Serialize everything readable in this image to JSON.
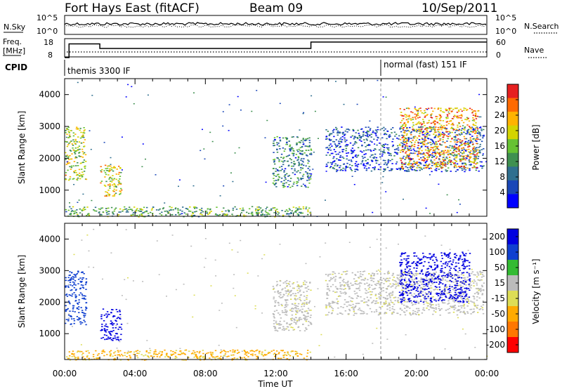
{
  "header": {
    "station": "Fort Hays East (fitACF)",
    "beam": "Beam 09",
    "date": "10/Sep/2011"
  },
  "noise_panel": {
    "left_label": "N.Sky",
    "right_label": "N.Search",
    "left_ticks": [
      "10^5",
      "10^0"
    ],
    "right_ticks": [
      "10^5",
      "10^0"
    ]
  },
  "freq_panel": {
    "left_label_top": "Freq.",
    "left_label_unit": "[MHz]",
    "right_label": "Nave",
    "left_ticks": [
      "18",
      "8"
    ],
    "right_ticks": [
      "60",
      "0"
    ],
    "freq_steps": [
      {
        "t_start": 0.0,
        "t_end": 0.25,
        "mhz": 8
      },
      {
        "t_start": 0.25,
        "t_end": 2.0,
        "mhz": 15.5
      },
      {
        "t_start": 2.0,
        "t_end": 14.0,
        "mhz": 13
      },
      {
        "t_start": 14.0,
        "t_end": 24.0,
        "mhz": 16.5
      }
    ]
  },
  "cpid_panel": {
    "label": "CPID",
    "programs": [
      {
        "name": "themis 3300 IF",
        "t_start": 0.0
      },
      {
        "name": "normal (fast) 151 IF",
        "t_start": 18.0
      }
    ]
  },
  "colors": {
    "power": [
      "#0000ff",
      "#1a47b8",
      "#2f6f8f",
      "#3f9050",
      "#67c233",
      "#d4d400",
      "#ffb300",
      "#ff6a00",
      "#e62020"
    ],
    "velocity": [
      "#0000e0",
      "#1040d0",
      "#33bb33",
      "#bbbbbb",
      "#dddd55",
      "#ffaa00",
      "#ff7700",
      "#ff0000"
    ],
    "ground": "#bbbbbb"
  },
  "chart_data": [
    {
      "type": "heatmap",
      "name": "power",
      "ylabel": "Slant Range [km]",
      "yticks": [
        1000,
        2000,
        3000,
        4000
      ],
      "ylim": [
        180,
        4500
      ],
      "xlim": [
        0,
        24
      ],
      "colorbar_label": "Power [dB]",
      "colorbar_ticks": [
        "28",
        "24",
        "20",
        "16",
        "12",
        "8",
        "4"
      ],
      "colorbar_range": [
        0,
        32
      ],
      "echo_regions": [
        {
          "t_start": 0.0,
          "t_end": 1.2,
          "r_low": 1300,
          "r_high": 3000,
          "dB": 18
        },
        {
          "t_start": 2.0,
          "t_end": 3.2,
          "r_low": 800,
          "r_high": 1800,
          "dB": 20
        },
        {
          "t_start": 11.8,
          "t_end": 14.0,
          "r_low": 1100,
          "r_high": 2700,
          "dB": 10
        },
        {
          "t_start": 14.8,
          "t_end": 23.8,
          "r_low": 1600,
          "r_high": 3000,
          "dB": 6
        },
        {
          "t_start": 19.0,
          "t_end": 23.5,
          "r_low": 1700,
          "r_high": 3600,
          "dB": 24
        },
        {
          "t_start": 0.0,
          "t_end": 14.0,
          "r_low": 180,
          "r_high": 500,
          "dB": 14
        }
      ]
    },
    {
      "type": "heatmap",
      "name": "velocity",
      "ylabel": "Slant Range [km]",
      "xlabel": "Time UT",
      "xticks": [
        "00:00",
        "04:00",
        "08:00",
        "12:00",
        "16:00",
        "20:00",
        "00:00"
      ],
      "yticks": [
        1000,
        2000,
        3000,
        4000
      ],
      "ylim": [
        180,
        4500
      ],
      "xlim": [
        0,
        24
      ],
      "colorbar_label": "Velocity [m s⁻¹]",
      "colorbar_ticks": [
        "200",
        "100",
        "50",
        "15",
        "-15",
        "-50",
        "-100",
        "-200"
      ],
      "echo_regions": [
        {
          "t_start": 0.0,
          "t_end": 1.2,
          "r_low": 1300,
          "r_high": 3000,
          "velocity": 120
        },
        {
          "t_start": 2.0,
          "t_end": 3.2,
          "r_low": 800,
          "r_high": 1800,
          "velocity": 200
        },
        {
          "t_start": 11.8,
          "t_end": 14.0,
          "r_low": 1100,
          "r_high": 2700,
          "velocity": 0
        },
        {
          "t_start": 14.8,
          "t_end": 23.8,
          "r_low": 1600,
          "r_high": 3000,
          "velocity": 0
        },
        {
          "t_start": 19.0,
          "t_end": 23.0,
          "r_low": 2000,
          "r_high": 3600,
          "velocity": 200
        },
        {
          "t_start": 0.0,
          "t_end": 14.0,
          "r_low": 180,
          "r_high": 500,
          "velocity": -60
        }
      ]
    }
  ]
}
